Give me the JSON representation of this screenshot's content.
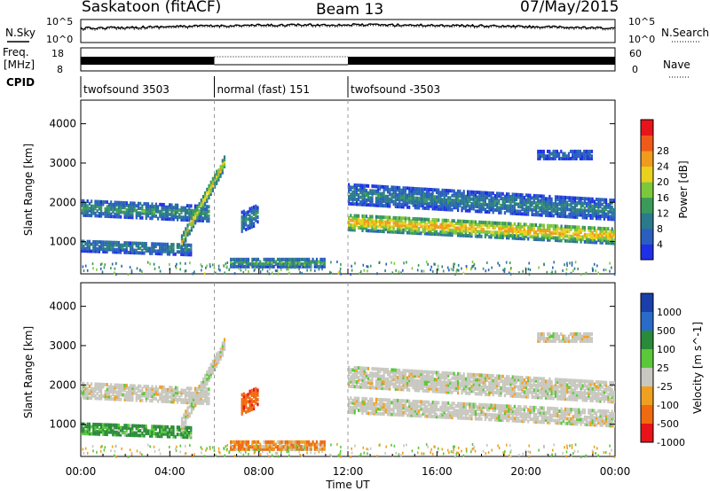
{
  "header": {
    "station": "Saskatoon (fitACF)",
    "beam": "Beam 13",
    "date": "07/May/2015"
  },
  "top_panels": {
    "nsky_label": "N.Sky",
    "nsearch_label": "N.Search",
    "freq_label_1": "Freq.",
    "freq_label_2": "[MHz]",
    "nave_label": "Nave",
    "noise_ticks_left": [
      "10^5",
      "10^0"
    ],
    "noise_ticks_right": [
      "10^5",
      "10^0"
    ],
    "freq_ticks_left": [
      "18",
      "8"
    ],
    "freq_ticks_right": [
      "60",
      "0"
    ]
  },
  "cpid": {
    "label": "CPID",
    "segments": [
      {
        "start_hour": 0,
        "end_hour": 6,
        "name": "twofsound 3503"
      },
      {
        "start_hour": 6,
        "end_hour": 12,
        "name": "normal (fast) 151"
      },
      {
        "start_hour": 12,
        "end_hour": 24,
        "name": "twofsound -3503"
      }
    ]
  },
  "axes": {
    "ylabel": "Slant Range [km]",
    "xlabel": "Time UT",
    "xticks": [
      "00:00",
      "04:00",
      "08:00",
      "12:00",
      "16:00",
      "20:00",
      "00:00"
    ],
    "yticks": [
      "1000",
      "2000",
      "3000",
      "4000"
    ]
  },
  "power_colorbar": {
    "label": "Power [dB]",
    "ticks": [
      "4",
      "8",
      "12",
      "16",
      "20",
      "24",
      "28"
    ],
    "colors": [
      "#1f2fe6",
      "#2a5fc0",
      "#2a7a8c",
      "#3a9a5a",
      "#7cc83c",
      "#e8d21e",
      "#f09a1e",
      "#ef5a1a",
      "#e8141a"
    ]
  },
  "velocity_colorbar": {
    "label": "Velocity [m s^-1]",
    "ticks": [
      "1000",
      "500",
      "100",
      "25",
      "-25",
      "-100",
      "-500",
      "-1000"
    ],
    "colors": [
      "#1a3faa",
      "#2a6ac8",
      "#2a8a3a",
      "#5ac83a",
      "#c8c8c0",
      "#f0a020",
      "#f06a10",
      "#e8141a"
    ]
  },
  "chart_data": [
    {
      "type": "heatmap",
      "title": "Power",
      "xlabel": "Time UT",
      "ylabel": "Slant Range [km]",
      "xlim": [
        0,
        24
      ],
      "ylim": [
        180,
        4600
      ],
      "colorbar": {
        "label": "Power [dB]",
        "range": [
          0,
          32
        ]
      },
      "bands": [
        {
          "t": [
            0,
            5.8
          ],
          "range_start": 1850,
          "range_end": 1700,
          "width": 380,
          "value": 12
        },
        {
          "t": [
            0,
            5.0
          ],
          "range_start": 900,
          "range_end": 800,
          "width": 300,
          "value": 10
        },
        {
          "t": [
            4.5,
            6.5
          ],
          "range_start": 1000,
          "range_end": 3100,
          "width": 350,
          "value": 20
        },
        {
          "t": [
            12.0,
            24
          ],
          "range_start": 1500,
          "range_end": 1150,
          "width": 420,
          "value": 24
        },
        {
          "t": [
            12.0,
            24
          ],
          "range_start": 2200,
          "range_end": 1800,
          "width": 500,
          "value": 10
        },
        {
          "t": [
            20.5,
            23.0
          ],
          "range_start": 3200,
          "range_end": 3200,
          "width": 200,
          "value": 8
        },
        {
          "t": [
            7.2,
            8.0
          ],
          "range_start": 1500,
          "range_end": 1700,
          "width": 500,
          "value": 10
        },
        {
          "t": [
            6.7,
            11.0
          ],
          "range_start": 450,
          "range_end": 450,
          "width": 200,
          "value": 14
        }
      ]
    },
    {
      "type": "heatmap",
      "title": "Velocity",
      "xlabel": "Time UT",
      "ylabel": "Slant Range [km]",
      "xlim": [
        0,
        24
      ],
      "ylim": [
        180,
        4600
      ],
      "colorbar": {
        "label": "Velocity [m s^-1]",
        "range": [
          -1000,
          1000
        ]
      },
      "bands": [
        {
          "t": [
            0,
            5.8
          ],
          "range_start": 1850,
          "range_end": 1700,
          "width": 380,
          "value": 0
        },
        {
          "t": [
            0,
            5.0
          ],
          "range_start": 900,
          "range_end": 800,
          "width": 300,
          "value": 150
        },
        {
          "t": [
            4.5,
            6.5
          ],
          "range_start": 1000,
          "range_end": 3100,
          "width": 350,
          "value": 0
        },
        {
          "t": [
            12.0,
            24
          ],
          "range_start": 1500,
          "range_end": 1150,
          "width": 420,
          "value": 0
        },
        {
          "t": [
            12.0,
            24
          ],
          "range_start": 2200,
          "range_end": 1800,
          "width": 500,
          "value": 0
        },
        {
          "t": [
            20.5,
            23.0
          ],
          "range_start": 3200,
          "range_end": 3200,
          "width": 200,
          "value": 0
        },
        {
          "t": [
            7.2,
            8.0
          ],
          "range_start": 1500,
          "range_end": 1700,
          "width": 500,
          "value": -400
        },
        {
          "t": [
            6.7,
            11.0
          ],
          "range_start": 450,
          "range_end": 450,
          "width": 200,
          "value": -120
        }
      ]
    }
  ]
}
